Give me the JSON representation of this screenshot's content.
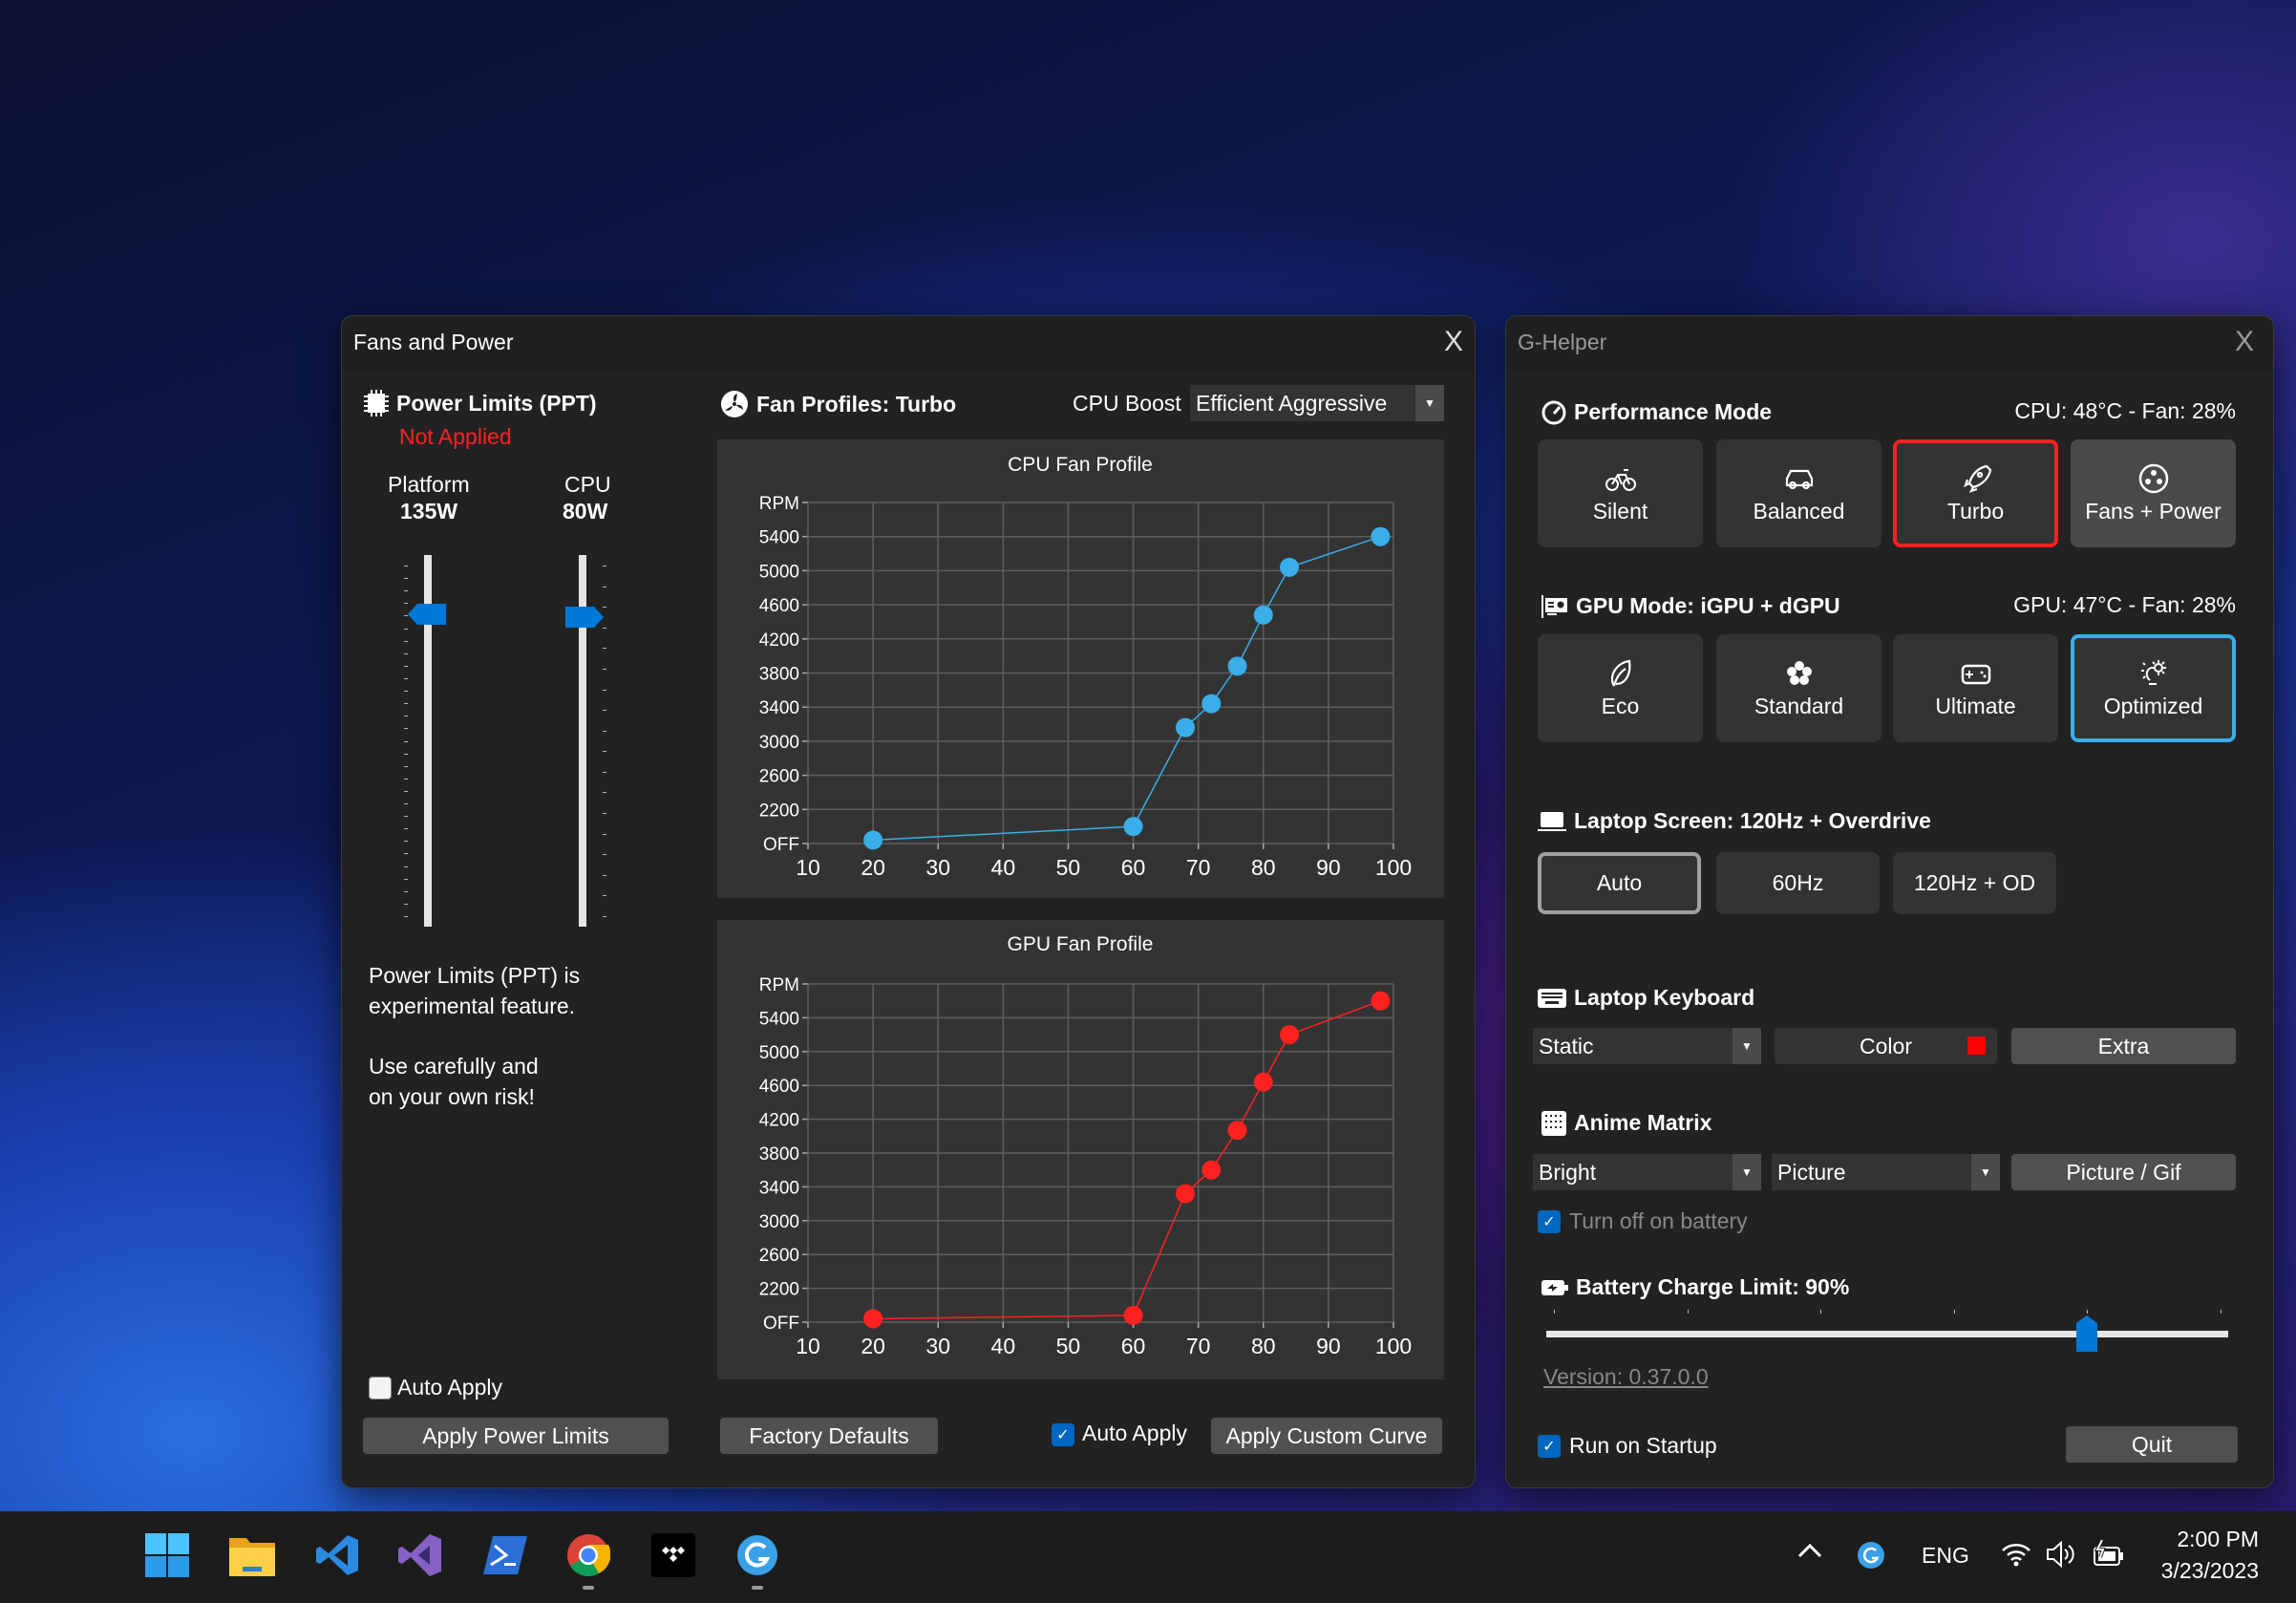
{
  "fans_window": {
    "title": "Fans and Power",
    "close": "X",
    "ppt": {
      "title": "Power Limits (PPT)",
      "status": "Not Applied",
      "status_color": "#ff2020",
      "platform": {
        "label": "Platform",
        "value": "135W",
        "slider_level": 0.87
      },
      "cpu": {
        "label": "CPU",
        "value": "80W",
        "slider_level": 0.86
      },
      "note1": "Power Limits (PPT) is",
      "note2": "experimental feature.",
      "note3": "Use carefully and",
      "note4": "on your own risk!",
      "auto_apply": {
        "label": "Auto Apply",
        "checked": false
      },
      "apply_button": "Apply Power Limits"
    },
    "fans": {
      "title": "Fan Profiles: Turbo",
      "cpu_boost_label": "CPU Boost",
      "cpu_boost_value": "Efficient Aggressive",
      "factory_defaults": "Factory Defaults",
      "auto_apply": {
        "label": "Auto Apply",
        "checked": true
      },
      "apply_button": "Apply Custom Curve"
    }
  },
  "chart_data": [
    {
      "type": "line",
      "title": "CPU Fan Profile",
      "ylabel": "RPM",
      "xlim": [
        10,
        100
      ],
      "ylim": [
        1800,
        5800
      ],
      "x_ticks": [
        "10",
        "20",
        "30",
        "40",
        "50",
        "60",
        "70",
        "80",
        "90",
        "100"
      ],
      "y_ticks": [
        "OFF",
        "2200",
        "2600",
        "3000",
        "3400",
        "3800",
        "4200",
        "4600",
        "5000",
        "5400",
        "RPM"
      ],
      "grid": true,
      "color": "#3aaee8",
      "x": [
        20,
        60,
        68,
        72,
        76,
        80,
        84,
        98
      ],
      "y": [
        1840,
        2000,
        3160,
        3440,
        3880,
        4480,
        5040,
        5400
      ]
    },
    {
      "type": "line",
      "title": "GPU Fan Profile",
      "ylabel": "RPM",
      "xlim": [
        10,
        100
      ],
      "ylim": [
        1800,
        5800
      ],
      "x_ticks": [
        "10",
        "20",
        "30",
        "40",
        "50",
        "60",
        "70",
        "80",
        "90",
        "100"
      ],
      "y_ticks": [
        "OFF",
        "2200",
        "2600",
        "3000",
        "3400",
        "3800",
        "4200",
        "4600",
        "5000",
        "5400",
        "RPM"
      ],
      "grid": true,
      "color": "#ff2020",
      "x": [
        20,
        60,
        68,
        72,
        76,
        80,
        84,
        98
      ],
      "y": [
        1840,
        1880,
        3320,
        3600,
        4070,
        4640,
        5200,
        5600
      ]
    }
  ],
  "ghelper": {
    "title": "G-Helper",
    "close": "X",
    "perf": {
      "title": "Performance Mode",
      "info": "CPU: 48°C -  Fan: 28%",
      "modes": [
        {
          "label": "Silent",
          "icon": "bicycle-icon"
        },
        {
          "label": "Balanced",
          "icon": "car-icon"
        },
        {
          "label": "Turbo",
          "icon": "rocket-icon",
          "selected": true
        },
        {
          "label": "Fans + Power",
          "icon": "fan-icon"
        }
      ],
      "selected_color": "#ff2020"
    },
    "gpu": {
      "title": "GPU Mode: iGPU + dGPU",
      "info": "GPU: 47°C -  Fan: 28%",
      "modes": [
        {
          "label": "Eco",
          "icon": "leaf-icon"
        },
        {
          "label": "Standard",
          "icon": "flower-icon"
        },
        {
          "label": "Ultimate",
          "icon": "gamepad-icon"
        },
        {
          "label": "Optimized",
          "icon": "bulb-gear-icon",
          "selected": true
        }
      ],
      "selected_color": "#3aaee8"
    },
    "screen": {
      "title": "Laptop Screen: 120Hz + Overdrive",
      "options": [
        "Auto",
        "60Hz",
        "120Hz + OD"
      ],
      "selected": "Auto"
    },
    "keyboard": {
      "title": "Laptop Keyboard",
      "mode": "Static",
      "color_label": "Color",
      "color": "#ff0000",
      "extra": "Extra"
    },
    "anime": {
      "title": "Anime Matrix",
      "brightness": "Bright",
      "mode": "Picture",
      "picture_button": "Picture / Gif",
      "turn_off_battery": {
        "label": "Turn off on battery",
        "checked": true
      }
    },
    "battery": {
      "title": "Battery Charge Limit: 90%",
      "value": 90
    },
    "version": "Version: 0.37.0.0",
    "run_on_startup": {
      "label": "Run on Startup",
      "checked": true
    },
    "quit": "Quit"
  },
  "taskbar": {
    "apps": [
      "start-icon",
      "file-explorer-icon",
      "vscode-icon",
      "visual-studio-icon",
      "terminal-icon",
      "chrome-icon",
      "tidal-icon",
      "ghelper-icon"
    ],
    "language": "ENG",
    "time": "2:00 PM",
    "date": "3/23/2023"
  }
}
